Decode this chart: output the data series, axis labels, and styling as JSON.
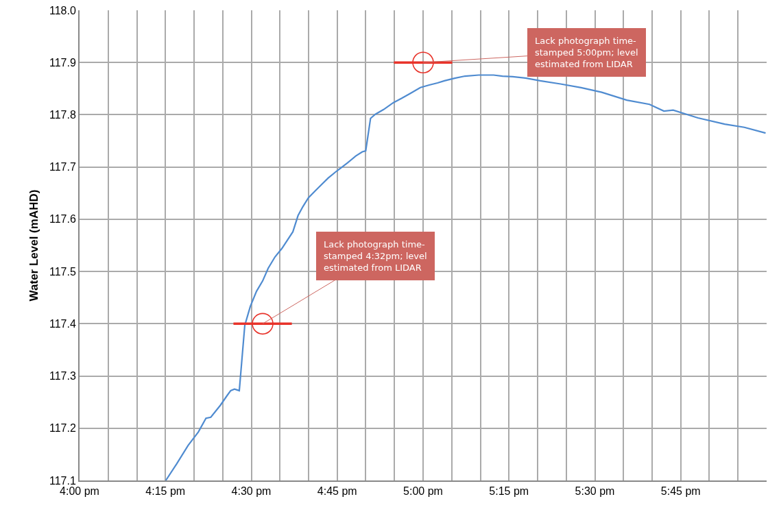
{
  "chart_data": {
    "type": "line",
    "ylabel": "Water Level (mAHD)",
    "xlim": [
      16,
      18
    ],
    "ylim": [
      117.1,
      118.0
    ],
    "xticks": [
      {
        "value": 16,
        "label": "4:00 pm"
      },
      {
        "value": 16.0833,
        "label": null
      },
      {
        "value": 16.1667,
        "label": null
      },
      {
        "value": 16.25,
        "label": "4:15 pm"
      },
      {
        "value": 16.3333,
        "label": null
      },
      {
        "value": 16.4167,
        "label": null
      },
      {
        "value": 16.5,
        "label": "4:30 pm"
      },
      {
        "value": 16.5833,
        "label": null
      },
      {
        "value": 16.6667,
        "label": null
      },
      {
        "value": 16.75,
        "label": "4:45 pm"
      },
      {
        "value": 16.8333,
        "label": null
      },
      {
        "value": 16.9167,
        "label": null
      },
      {
        "value": 17,
        "label": "5:00 pm"
      },
      {
        "value": 17.0833,
        "label": null
      },
      {
        "value": 17.1667,
        "label": null
      },
      {
        "value": 17.25,
        "label": "5:15 pm"
      },
      {
        "value": 17.3333,
        "label": null
      },
      {
        "value": 17.4167,
        "label": null
      },
      {
        "value": 17.5,
        "label": "5:30 pm"
      },
      {
        "value": 17.5833,
        "label": null
      },
      {
        "value": 17.6667,
        "label": null
      },
      {
        "value": 17.75,
        "label": "5:45 pm"
      },
      {
        "value": 17.8333,
        "label": null
      },
      {
        "value": 17.9167,
        "label": null
      }
    ],
    "yticks": [
      117.1,
      117.2,
      117.3,
      117.4,
      117.5,
      117.6,
      117.7,
      117.8,
      117.9,
      {
        "value": 118.0,
        "label": "118.0"
      }
    ],
    "grid": true,
    "legend": false,
    "series": [
      {
        "color": "#4f8bd0",
        "marker": "none",
        "line_style": "solid",
        "x": [
          16.251,
          16.282,
          16.316,
          16.346,
          16.368,
          16.382,
          16.41,
          16.43,
          16.44,
          16.451,
          16.465,
          16.481,
          16.497,
          16.515,
          16.533,
          16.549,
          16.569,
          16.589,
          16.621,
          16.636,
          16.65,
          16.666,
          16.684,
          16.704,
          16.724,
          16.748,
          16.78,
          16.804,
          16.823,
          16.833,
          16.847,
          16.861,
          16.885,
          16.913,
          16.939,
          16.963,
          16.992,
          17.018,
          17.042,
          17.062,
          17.092,
          17.122,
          17.162,
          17.205,
          17.231,
          17.261,
          17.301,
          17.341,
          17.4,
          17.46,
          17.52,
          17.593,
          17.659,
          17.701,
          17.728,
          17.8,
          17.878,
          17.935,
          17.997
        ],
        "values": [
          117.1,
          117.131,
          117.167,
          117.193,
          117.219,
          117.221,
          117.244,
          117.263,
          117.272,
          117.275,
          117.272,
          117.397,
          117.433,
          117.462,
          117.482,
          117.506,
          117.528,
          117.544,
          117.576,
          117.607,
          117.624,
          117.641,
          117.653,
          117.666,
          117.679,
          117.692,
          117.708,
          117.721,
          117.729,
          117.731,
          117.793,
          117.801,
          117.81,
          117.823,
          117.832,
          117.841,
          117.852,
          117.857,
          117.861,
          117.865,
          117.87,
          117.874,
          117.876,
          117.876,
          117.874,
          117.873,
          117.87,
          117.865,
          117.859,
          117.852,
          117.843,
          117.828,
          117.82,
          117.807,
          117.809,
          117.794,
          117.782,
          117.776,
          117.765
        ]
      },
      {
        "type": "scatter",
        "color": "#e8332a",
        "marker": "circle",
        "x": [
          16.533,
          17.0
        ],
        "values": [
          117.4,
          117.9
        ],
        "xerrors": [
          0.085,
          0.085
        ]
      }
    ],
    "annotations": [
      {
        "text": "Lack photograph time-stamped 4:32pm; level estimated from LIDAR",
        "x": 16.533,
        "y": 117.4
      },
      {
        "text": "Lack photograph time-stamped 5:00pm; level estimated from LIDAR",
        "x": 17.0,
        "y": 117.9
      }
    ]
  }
}
